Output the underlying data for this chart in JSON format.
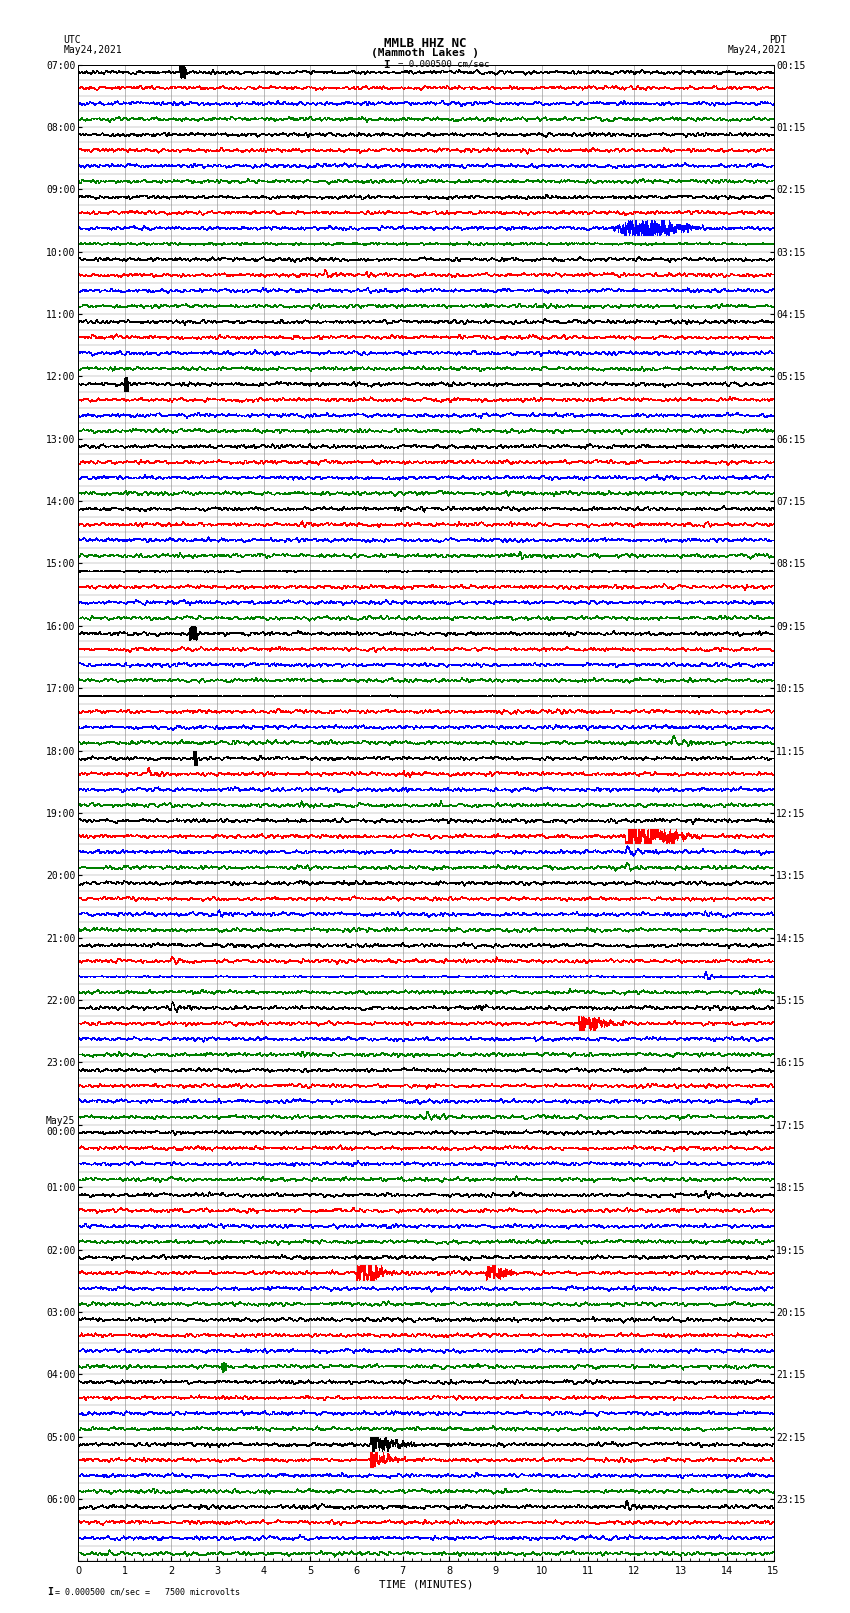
{
  "title_line1": "MMLB HHZ NC",
  "title_line2": "(Mammoth Lakes )",
  "title_scale": "I = 0.000500 cm/sec",
  "left_label": "UTC",
  "left_date": "May24,2021",
  "right_label": "PDT",
  "right_date": "May24,2021",
  "bottom_label": "TIME (MINUTES)",
  "bottom_note": "= 0.000500 cm/sec =   7500 microvolts",
  "xlim": [
    0,
    15
  ],
  "xticks": [
    0,
    1,
    2,
    3,
    4,
    5,
    6,
    7,
    8,
    9,
    10,
    11,
    12,
    13,
    14,
    15
  ],
  "trace_colors": [
    "black",
    "red",
    "blue",
    "green"
  ],
  "num_rows": 24,
  "traces_per_row": 4,
  "background_color": "#ffffff",
  "grid_color": "#555555",
  "font_size_labels": 7,
  "font_size_title": 9,
  "utc_labels": [
    "07:00",
    "08:00",
    "09:00",
    "10:00",
    "11:00",
    "12:00",
    "13:00",
    "14:00",
    "15:00",
    "16:00",
    "17:00",
    "18:00",
    "19:00",
    "20:00",
    "21:00",
    "22:00",
    "23:00",
    "May25\n00:00",
    "01:00",
    "02:00",
    "03:00",
    "04:00",
    "05:00",
    "06:00"
  ],
  "pdt_labels": [
    "00:15",
    "01:15",
    "02:15",
    "03:15",
    "04:15",
    "05:15",
    "06:15",
    "07:15",
    "08:15",
    "09:15",
    "10:15",
    "11:15",
    "12:15",
    "13:15",
    "14:15",
    "15:15",
    "16:15",
    "17:15",
    "18:15",
    "19:15",
    "20:15",
    "21:15",
    "22:15",
    "23:15"
  ]
}
